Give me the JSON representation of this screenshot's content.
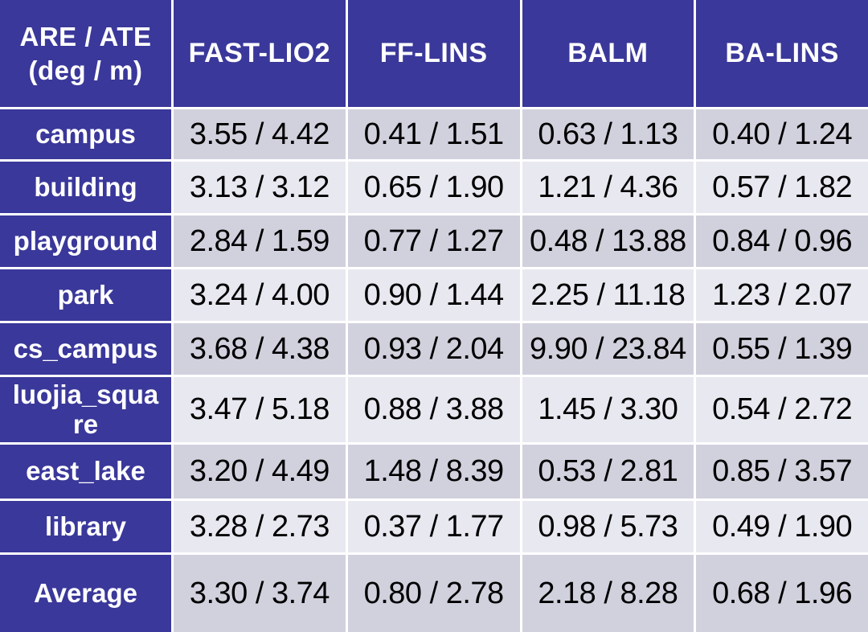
{
  "table": {
    "corner_header": "ARE / ATE\n(deg / m)",
    "columns": [
      "FAST-LIO2",
      "FF-LINS",
      "BALM",
      "BA-LINS"
    ],
    "rows": [
      {
        "label": "campus",
        "values": [
          "3.55 / 4.42",
          "0.41 / 1.51",
          "0.63 / 1.13",
          "0.40 / 1.24"
        ]
      },
      {
        "label": "building",
        "values": [
          "3.13 / 3.12",
          "0.65 / 1.90",
          "1.21 / 4.36",
          "0.57 / 1.82"
        ]
      },
      {
        "label": "playground",
        "values": [
          "2.84 / 1.59",
          "0.77 / 1.27",
          "0.48 / 13.88",
          "0.84 / 0.96"
        ]
      },
      {
        "label": "park",
        "values": [
          "3.24 / 4.00",
          "0.90 / 1.44",
          "2.25 / 11.18",
          "1.23 / 2.07"
        ]
      },
      {
        "label": "cs_campus",
        "values": [
          "3.68 / 4.38",
          "0.93 / 2.04",
          "9.90 / 23.84",
          "0.55 / 1.39"
        ]
      },
      {
        "label": "luojia_square",
        "values": [
          "3.47 / 5.18",
          "0.88 / 3.88",
          "1.45 / 3.30",
          "0.54 / 2.72"
        ]
      },
      {
        "label": "east_lake",
        "values": [
          "3.20 / 4.49",
          "1.48 / 8.39",
          "0.53 / 2.81",
          "0.85 / 3.57"
        ]
      },
      {
        "label": "library",
        "values": [
          "3.28 / 2.73",
          "0.37 / 1.77",
          "0.98 / 5.73",
          "0.49 / 1.90"
        ]
      },
      {
        "label": "Average",
        "values": [
          "3.30 / 3.74",
          "0.80 / 2.78",
          "2.18 / 8.28",
          "0.68 / 1.96"
        ]
      }
    ]
  },
  "colors": {
    "header_bg": "#3a389a",
    "row_band_dark": "#d1d1de",
    "row_band_light": "#e8e8f1",
    "grid_line": "#ffffff",
    "header_text": "#ffffff",
    "value_text": "#000000"
  }
}
